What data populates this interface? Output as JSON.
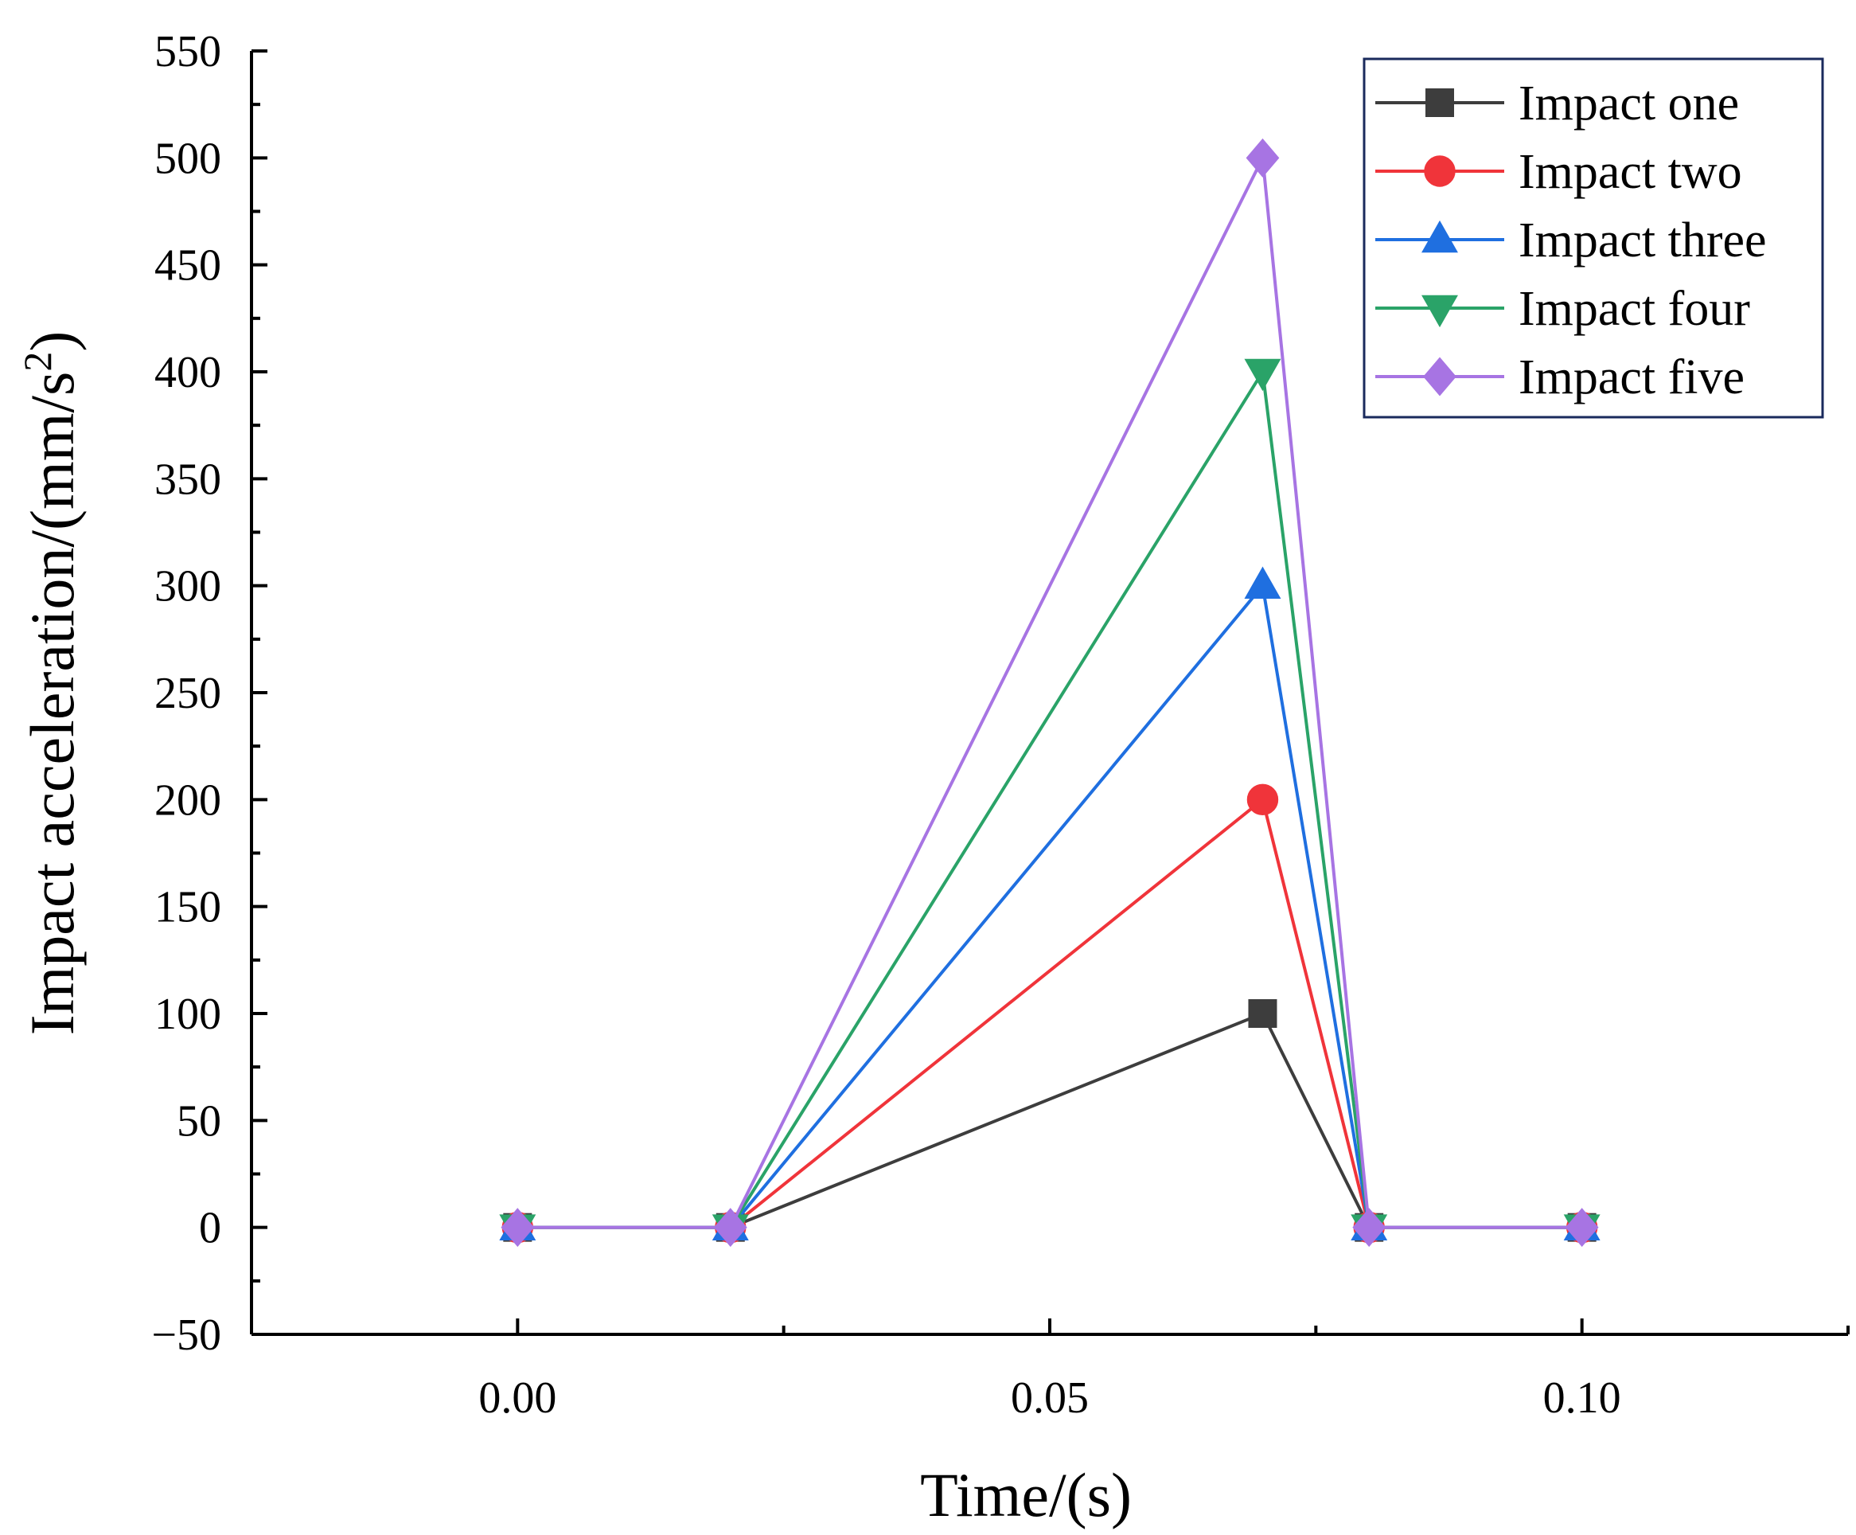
{
  "chart_data": {
    "type": "line",
    "x": [
      0.0,
      0.02,
      0.07,
      0.08,
      0.1
    ],
    "xlabel": "Time/(s)",
    "ylabel": "Impact acceleration/(mm/s",
    "ylabel_superscript": "2",
    "ylabel_close": ")",
    "xlim": [
      -0.025,
      0.125
    ],
    "ylim": [
      -50,
      550
    ],
    "xticks": [
      0.0,
      0.05,
      0.1
    ],
    "xtick_labels": [
      "0.00",
      "0.05",
      "0.10"
    ],
    "yticks": [
      -50,
      0,
      50,
      100,
      150,
      200,
      250,
      300,
      350,
      400,
      450,
      500,
      550
    ],
    "ytick_labels": [
      "−50",
      "0",
      "50",
      "100",
      "150",
      "200",
      "250",
      "300",
      "350",
      "400",
      "450",
      "500",
      "550"
    ],
    "legend_position": "top-right",
    "series": [
      {
        "name": "Impact one",
        "values": [
          0,
          0,
          100,
          0,
          0
        ],
        "color": "#3d3d3d",
        "marker": "square"
      },
      {
        "name": "Impact two",
        "values": [
          0,
          0,
          200,
          0,
          0
        ],
        "color": "#f0343a",
        "marker": "circle"
      },
      {
        "name": "Impact three",
        "values": [
          0,
          0,
          300,
          0,
          0
        ],
        "color": "#1f6fe0",
        "marker": "triangle-up"
      },
      {
        "name": "Impact four",
        "values": [
          0,
          0,
          400,
          0,
          0
        ],
        "color": "#2aa368",
        "marker": "triangle-down"
      },
      {
        "name": "Impact five",
        "values": [
          0,
          0,
          500,
          0,
          0
        ],
        "color": "#a774e3",
        "marker": "diamond"
      }
    ]
  }
}
